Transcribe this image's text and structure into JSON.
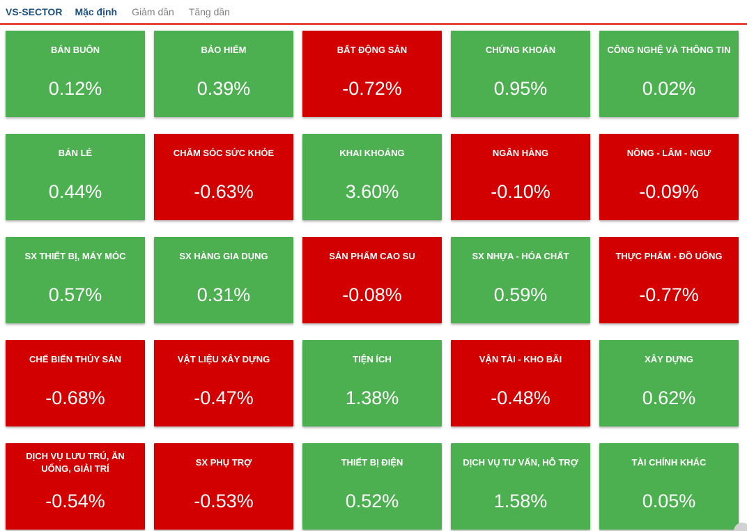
{
  "header": {
    "brand": "VS-SECTOR",
    "tabs": [
      {
        "label": "Mặc định",
        "active": true
      },
      {
        "label": "Giảm dần",
        "active": false
      },
      {
        "label": "Tăng dần",
        "active": false
      }
    ]
  },
  "colors": {
    "positive": "#4CAF50",
    "negative": "#D30000",
    "brand_text": "#1E5180",
    "inactive_tab_text": "#7F7F7F",
    "divider": "#E8473A",
    "tile_text": "#FFFFFF"
  },
  "sectors": [
    {
      "label": "BÁN BUÔN",
      "value": "0.12%",
      "direction": "up"
    },
    {
      "label": "BẢO HIỂM",
      "value": "0.39%",
      "direction": "up"
    },
    {
      "label": "BẤT ĐỘNG SẢN",
      "value": "-0.72%",
      "direction": "down"
    },
    {
      "label": "CHỨNG KHOÁN",
      "value": "0.95%",
      "direction": "up"
    },
    {
      "label": "CÔNG NGHỆ VÀ THÔNG TIN",
      "value": "0.02%",
      "direction": "up"
    },
    {
      "label": "BÁN LẺ",
      "value": "0.44%",
      "direction": "up"
    },
    {
      "label": "CHĂM SÓC SỨC KHỎE",
      "value": "-0.63%",
      "direction": "down"
    },
    {
      "label": "KHAI KHOÁNG",
      "value": "3.60%",
      "direction": "up"
    },
    {
      "label": "NGÂN HÀNG",
      "value": "-0.10%",
      "direction": "down"
    },
    {
      "label": "NÔNG - LÂM - NGƯ",
      "value": "-0.09%",
      "direction": "down"
    },
    {
      "label": "SX THIẾT BỊ, MÁY MÓC",
      "value": "0.57%",
      "direction": "up"
    },
    {
      "label": "SX HÀNG GIA DỤNG",
      "value": "0.31%",
      "direction": "up"
    },
    {
      "label": "SẢN PHẨM CAO SU",
      "value": "-0.08%",
      "direction": "down"
    },
    {
      "label": "SX NHỰA - HÓA CHẤT",
      "value": "0.59%",
      "direction": "up"
    },
    {
      "label": "THỰC PHẨM - ĐỒ UỐNG",
      "value": "-0.77%",
      "direction": "down"
    },
    {
      "label": "CHẾ BIẾN THỦY SẢN",
      "value": "-0.68%",
      "direction": "down"
    },
    {
      "label": "VẬT LIỆU XÂY DỰNG",
      "value": "-0.47%",
      "direction": "down"
    },
    {
      "label": "TIỆN ÍCH",
      "value": "1.38%",
      "direction": "up"
    },
    {
      "label": "VẬN TẢI - KHO BÃI",
      "value": "-0.48%",
      "direction": "down"
    },
    {
      "label": "XÂY DỰNG",
      "value": "0.62%",
      "direction": "up"
    },
    {
      "label": "DỊCH VỤ LƯU TRÚ, ĂN UỐNG, GIẢI TRÍ",
      "value": "-0.54%",
      "direction": "down"
    },
    {
      "label": "SX PHỤ TRỢ",
      "value": "-0.53%",
      "direction": "down"
    },
    {
      "label": "THIẾT BỊ ĐIỆN",
      "value": "0.52%",
      "direction": "up"
    },
    {
      "label": "DỊCH VỤ TƯ VẤN, HỖ TRỢ",
      "value": "1.58%",
      "direction": "up"
    },
    {
      "label": "TÀI CHÍNH KHÁC",
      "value": "0.05%",
      "direction": "up"
    }
  ],
  "chart_data": {
    "type": "heatmap",
    "title": "VS-SECTOR",
    "categories": [
      "BÁN BUÔN",
      "BẢO HIỂM",
      "BẤT ĐỘNG SẢN",
      "CHỨNG KHOÁN",
      "CÔNG NGHỆ VÀ THÔNG TIN",
      "BÁN LẺ",
      "CHĂM SÓC SỨC KHỎE",
      "KHAI KHOÁNG",
      "NGÂN HÀNG",
      "NÔNG - LÂM - NGƯ",
      "SX THIẾT BỊ, MÁY MÓC",
      "SX HÀNG GIA DỤNG",
      "SẢN PHẨM CAO SU",
      "SX NHỰA - HÓA CHẤT",
      "THỰC PHẨM - ĐỒ UỐNG",
      "CHẾ BIẾN THỦY SẢN",
      "VẬT LIỆU XÂY DỰNG",
      "TIỆN ÍCH",
      "VẬN TẢI - KHO BÃI",
      "XÂY DỰNG",
      "DỊCH VỤ LƯU TRÚ, ĂN UỐNG, GIẢI TRÍ",
      "SX PHỤ TRỢ",
      "THIẾT BỊ ĐIỆN",
      "DỊCH VỤ TƯ VẤN, HỖ TRỢ",
      "TÀI CHÍNH KHÁC"
    ],
    "values": [
      0.12,
      0.39,
      -0.72,
      0.95,
      0.02,
      0.44,
      -0.63,
      3.6,
      -0.1,
      -0.09,
      0.57,
      0.31,
      -0.08,
      0.59,
      -0.77,
      -0.68,
      -0.47,
      1.38,
      -0.48,
      0.62,
      -0.54,
      -0.53,
      0.52,
      1.58,
      0.05
    ],
    "unit": "%",
    "layout": "5x5 tile grid",
    "color_rule": "green for value >= 0, red for value < 0"
  }
}
